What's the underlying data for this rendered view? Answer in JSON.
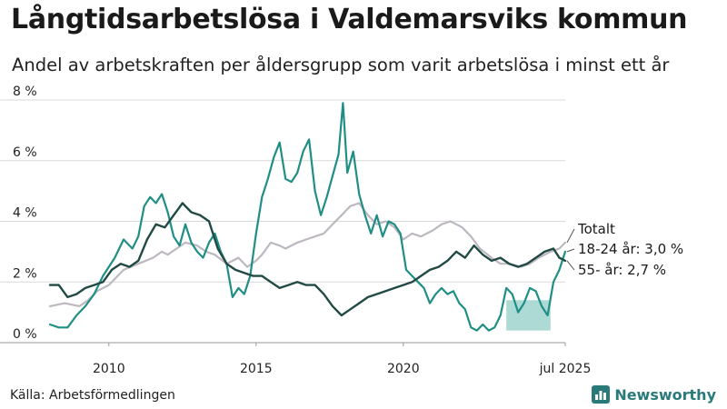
{
  "title": "Långtidsarbetslösa i Valdemarsviks kommun",
  "subtitle": "Andel av arbetskraften per åldersgrupp som varit arbetslösa i minst ett år",
  "source": "Källa: Arbetsförmedlingen",
  "brand": "Newsworthy",
  "colors": {
    "totalt": "#bdb8c0",
    "age_18_24": "#1f8f85",
    "age_55": "#224a44",
    "band": "#9fd3cc",
    "grid": "#d9d9d9",
    "brand": "#2a7a7a"
  },
  "chart_data": {
    "type": "line",
    "x_ticks": [
      "2010",
      "2015",
      "2020",
      "jul 2025"
    ],
    "x_tick_values": [
      2010.0,
      2015.0,
      2020.0,
      2025.5
    ],
    "xlim": [
      2008.0,
      2025.5
    ],
    "y_ticks": [
      "0 %",
      "2 %",
      "4 %",
      "6 %",
      "8 %"
    ],
    "y_tick_values": [
      0,
      2,
      4,
      6,
      8
    ],
    "ylim": [
      0,
      8
    ],
    "grid": "horizontal",
    "labels": {
      "totalt": "Totalt",
      "age_18_24": "18-24 år: 3,0 %",
      "age_55": "55- år: 2,7 %"
    },
    "band_18_24": {
      "x": [
        2023.5,
        2025.0
      ],
      "lower": 0.4,
      "upper": 1.4
    },
    "series": [
      {
        "key": "totalt",
        "x": [
          2008.0,
          2008.5,
          2009.0,
          2009.3,
          2009.6,
          2010.0,
          2010.5,
          2011.0,
          2011.5,
          2011.8,
          2012.0,
          2012.3,
          2012.6,
          2013.0,
          2013.3,
          2013.6,
          2014.0,
          2014.4,
          2014.7,
          2015.0,
          2015.2,
          2015.5,
          2015.8,
          2016.0,
          2016.4,
          2016.7,
          2017.0,
          2017.3,
          2017.6,
          2017.9,
          2018.2,
          2018.5,
          2018.8,
          2019.1,
          2019.4,
          2019.7,
          2020.0,
          2020.3,
          2020.6,
          2021.0,
          2021.3,
          2021.6,
          2022.0,
          2022.3,
          2022.6,
          2023.0,
          2023.3,
          2023.6,
          2024.0,
          2024.3,
          2024.6,
          2025.0,
          2025.3,
          2025.5
        ],
        "values": [
          1.2,
          1.3,
          1.2,
          1.4,
          1.7,
          1.9,
          2.4,
          2.6,
          2.8,
          3.0,
          2.9,
          3.1,
          3.3,
          3.2,
          3.0,
          2.9,
          2.6,
          2.8,
          2.5,
          2.7,
          2.9,
          3.3,
          3.2,
          3.1,
          3.3,
          3.4,
          3.5,
          3.6,
          3.9,
          4.2,
          4.5,
          4.6,
          4.2,
          3.9,
          4.0,
          3.8,
          3.4,
          3.6,
          3.5,
          3.7,
          3.9,
          4.0,
          3.8,
          3.5,
          3.1,
          2.8,
          2.6,
          2.6,
          2.5,
          2.6,
          2.8,
          3.0,
          3.1,
          3.3
        ]
      },
      {
        "key": "age_18_24",
        "x": [
          2008.0,
          2008.3,
          2008.6,
          2008.9,
          2009.2,
          2009.5,
          2009.8,
          2010.2,
          2010.5,
          2010.8,
          2011.0,
          2011.2,
          2011.4,
          2011.6,
          2011.8,
          2012.0,
          2012.2,
          2012.4,
          2012.6,
          2012.8,
          2013.0,
          2013.2,
          2013.4,
          2013.6,
          2013.8,
          2014.0,
          2014.2,
          2014.4,
          2014.6,
          2014.8,
          2015.0,
          2015.2,
          2015.4,
          2015.6,
          2015.8,
          2016.0,
          2016.2,
          2016.4,
          2016.6,
          2016.8,
          2017.0,
          2017.2,
          2017.4,
          2017.6,
          2017.8,
          2017.95,
          2018.1,
          2018.3,
          2018.5,
          2018.7,
          2018.9,
          2019.1,
          2019.3,
          2019.5,
          2019.7,
          2019.9,
          2020.1,
          2020.3,
          2020.5,
          2020.7,
          2020.9,
          2021.1,
          2021.3,
          2021.5,
          2021.7,
          2021.9,
          2022.1,
          2022.3,
          2022.5,
          2022.7,
          2022.9,
          2023.1,
          2023.3,
          2023.5,
          2023.7,
          2023.9,
          2024.1,
          2024.3,
          2024.5,
          2024.7,
          2024.9,
          2025.1,
          2025.3,
          2025.5
        ],
        "values": [
          0.6,
          0.5,
          0.5,
          0.9,
          1.2,
          1.6,
          2.2,
          2.8,
          3.4,
          3.1,
          3.5,
          4.5,
          4.8,
          4.6,
          4.9,
          4.3,
          3.5,
          3.2,
          3.9,
          3.3,
          3.0,
          2.8,
          3.3,
          3.6,
          3.0,
          2.6,
          1.5,
          1.8,
          1.6,
          2.2,
          3.6,
          4.8,
          5.4,
          6.1,
          6.6,
          5.4,
          5.3,
          5.6,
          6.3,
          6.7,
          5.0,
          4.2,
          4.8,
          5.5,
          6.2,
          7.9,
          5.6,
          6.3,
          4.9,
          4.2,
          3.6,
          4.2,
          3.5,
          4.0,
          3.9,
          3.6,
          2.4,
          2.2,
          2.0,
          1.8,
          1.3,
          1.6,
          1.8,
          1.6,
          1.7,
          1.3,
          1.1,
          0.5,
          0.4,
          0.6,
          0.4,
          0.5,
          0.9,
          1.8,
          1.6,
          1.0,
          1.3,
          1.8,
          1.7,
          1.2,
          0.9,
          2.0,
          2.4,
          3.0
        ]
      },
      {
        "key": "age_55",
        "x": [
          2008.0,
          2008.3,
          2008.6,
          2008.9,
          2009.2,
          2009.5,
          2009.8,
          2010.1,
          2010.4,
          2010.7,
          2011.0,
          2011.3,
          2011.6,
          2011.9,
          2012.2,
          2012.5,
          2012.8,
          2013.1,
          2013.4,
          2013.7,
          2014.0,
          2014.3,
          2014.6,
          2014.9,
          2015.2,
          2015.5,
          2015.8,
          2016.1,
          2016.4,
          2016.7,
          2017.0,
          2017.3,
          2017.6,
          2017.9,
          2018.2,
          2018.5,
          2018.8,
          2019.1,
          2019.4,
          2019.7,
          2020.0,
          2020.3,
          2020.6,
          2020.9,
          2021.2,
          2021.5,
          2021.8,
          2022.1,
          2022.4,
          2022.7,
          2023.0,
          2023.3,
          2023.6,
          2023.9,
          2024.2,
          2024.5,
          2024.8,
          2025.1,
          2025.3,
          2025.5
        ],
        "values": [
          1.9,
          1.9,
          1.5,
          1.6,
          1.8,
          1.9,
          2.0,
          2.4,
          2.6,
          2.5,
          2.7,
          3.4,
          3.9,
          3.8,
          4.2,
          4.6,
          4.3,
          4.2,
          4.0,
          3.1,
          2.6,
          2.4,
          2.3,
          2.2,
          2.2,
          2.0,
          1.8,
          1.9,
          2.0,
          1.9,
          1.9,
          1.6,
          1.2,
          0.9,
          1.1,
          1.3,
          1.5,
          1.6,
          1.7,
          1.8,
          1.9,
          2.0,
          2.2,
          2.4,
          2.5,
          2.7,
          3.0,
          2.8,
          3.2,
          2.9,
          2.7,
          2.8,
          2.6,
          2.5,
          2.6,
          2.8,
          3.0,
          3.1,
          2.8,
          2.7
        ]
      }
    ]
  }
}
